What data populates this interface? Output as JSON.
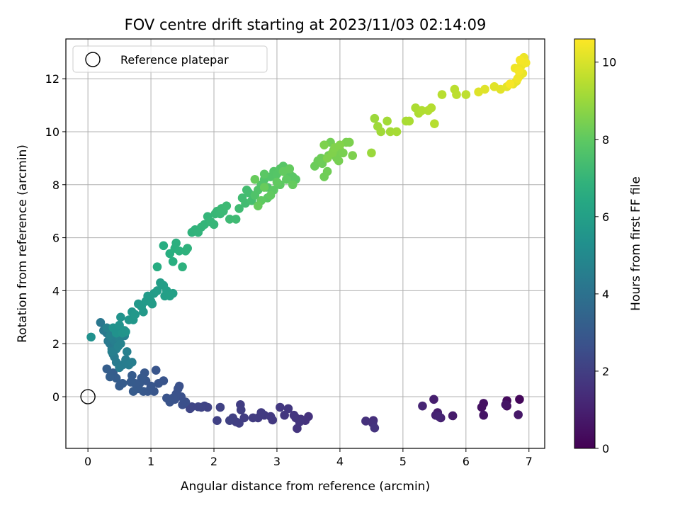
{
  "chart_data": {
    "type": "scatter",
    "title": "FOV centre drift starting at 2023/11/03 02:14:09",
    "xlabel": "Angular distance from reference (arcmin)",
    "ylabel": "Rotation from reference (arcmin)",
    "xlim": [
      -0.35,
      7.25
    ],
    "ylim": [
      -1.95,
      13.5
    ],
    "xticks": [
      0,
      1,
      2,
      3,
      4,
      5,
      6,
      7
    ],
    "yticks": [
      0,
      2,
      4,
      6,
      8,
      10,
      12
    ],
    "grid": true,
    "legend": {
      "entries": [
        "Reference platepar"
      ],
      "placement": "top-left"
    },
    "reference_point": {
      "x": 0,
      "y": 0
    },
    "colorbar": {
      "label": "Hours from first FF file",
      "colormap": "viridis",
      "range": [
        0,
        10.6
      ],
      "ticks": [
        0,
        2,
        4,
        6,
        8,
        10
      ]
    },
    "series": [
      {
        "x": [
          6.85,
          6.65,
          6.65,
          6.28,
          6.25,
          6.28,
          6.63,
          6.83,
          5.79,
          5.55,
          5.6,
          5.49,
          5.31,
          5.52,
          5.57,
          4.53,
          4.52,
          4.41,
          4.55
        ],
        "y": [
          -0.1,
          -0.15,
          -0.35,
          -0.25,
          -0.4,
          -0.7,
          -0.3,
          -0.68,
          -0.72,
          -0.6,
          -0.8,
          -0.1,
          -0.35,
          -0.7,
          -0.75,
          -0.9,
          -1.0,
          -0.92,
          -1.18
        ],
        "t": [
          0.2,
          0.3,
          0.4,
          0.5,
          0.5,
          0.6,
          0.6,
          0.7,
          0.8,
          0.9,
          1.0,
          0.9,
          1.1,
          1.0,
          1.1,
          1.4,
          1.5,
          1.5,
          1.6
        ]
      },
      {
        "x": [
          3.5,
          3.45,
          3.38,
          3.3,
          3.32,
          3.36,
          3.27,
          3.18,
          3.12,
          3.05,
          2.93,
          2.9,
          2.8,
          2.75,
          2.7,
          2.62,
          2.48,
          2.42,
          2.43,
          2.4,
          2.35,
          2.3,
          2.25,
          2.05,
          2.1,
          1.9,
          1.85,
          1.8,
          1.75,
          1.65,
          1.62
        ],
        "y": [
          -0.75,
          -0.9,
          -0.85,
          -0.8,
          -1.2,
          -0.95,
          -0.7,
          -0.45,
          -0.7,
          -0.4,
          -0.88,
          -0.75,
          -0.7,
          -0.6,
          -0.8,
          -0.8,
          -0.8,
          -0.3,
          -0.5,
          -1.0,
          -0.95,
          -0.8,
          -0.9,
          -0.9,
          -0.4,
          -0.4,
          -0.35,
          -0.4,
          -0.38,
          -0.38,
          -0.45
        ]
      },
      {
        "x": [
          1.55,
          1.5,
          1.48,
          1.45,
          1.43,
          1.4,
          1.38,
          1.35,
          1.3,
          1.25,
          1.2,
          1.12,
          1.08,
          1.05,
          1.0,
          0.95,
          0.92,
          0.9,
          0.88,
          0.85,
          0.82,
          0.8,
          0.75,
          0.72,
          0.7,
          0.68,
          0.55,
          0.5,
          0.45,
          0.4,
          0.35,
          0.3
        ],
        "y": [
          -0.2,
          -0.3,
          0.0,
          0.4,
          0.3,
          0.1,
          -0.1,
          -0.05,
          -0.2,
          -0.05,
          0.6,
          0.5,
          1.0,
          0.2,
          0.4,
          0.2,
          0.6,
          0.9,
          0.2,
          0.7,
          0.5,
          0.3,
          0.5,
          0.2,
          0.8,
          0.55,
          0.5,
          0.4,
          0.7,
          0.9,
          0.75,
          1.05
        ]
      },
      {
        "x": [
          0.2,
          0.25,
          0.3,
          0.32,
          0.35,
          0.38,
          0.4,
          0.42,
          0.45,
          0.5,
          0.55,
          0.6,
          0.65,
          0.7,
          0.45,
          0.42,
          0.4,
          0.38,
          0.62,
          0.58,
          0.35,
          0.3,
          0.55,
          0.5,
          0.48,
          0.52
        ],
        "y": [
          2.8,
          2.5,
          2.4,
          2.1,
          2.0,
          1.8,
          1.6,
          1.5,
          1.3,
          1.1,
          1.2,
          1.4,
          1.2,
          1.3,
          1.8,
          2.1,
          2.2,
          1.7,
          1.7,
          2.3,
          2.3,
          2.6,
          2.5,
          2.2,
          1.9,
          2.0
        ]
      },
      {
        "x": [
          0.05,
          0.4,
          0.45,
          0.5,
          0.52,
          0.55,
          0.58,
          0.6,
          0.65,
          0.7,
          0.72,
          0.75,
          0.8,
          0.85,
          0.88,
          0.92,
          0.95,
          1.0,
          1.02,
          1.05,
          1.1,
          1.15,
          1.2,
          1.22,
          1.25,
          1.3,
          1.35
        ],
        "y": [
          2.25,
          2.6,
          2.4,
          2.7,
          3.0,
          2.4,
          2.5,
          2.45,
          2.9,
          3.2,
          2.9,
          3.1,
          3.5,
          3.4,
          3.2,
          3.6,
          3.8,
          3.6,
          3.5,
          3.9,
          4.0,
          4.3,
          4.2,
          3.8,
          4.0,
          3.8,
          3.9
        ]
      },
      {
        "x": [
          1.1,
          1.2,
          1.3,
          1.35,
          1.38,
          1.4,
          1.45,
          1.5,
          1.55,
          1.58,
          1.65,
          1.7,
          1.75,
          1.8,
          1.85,
          1.9,
          1.95,
          2.0,
          2.02,
          2.05,
          2.1,
          2.12,
          2.15,
          2.2,
          2.25,
          2.35,
          2.4,
          2.45,
          2.5,
          2.52,
          2.55,
          2.6
        ],
        "y": [
          4.9,
          5.7,
          5.4,
          5.1,
          5.6,
          5.8,
          5.5,
          4.9,
          5.5,
          5.6,
          6.2,
          6.3,
          6.2,
          6.4,
          6.5,
          6.8,
          6.6,
          6.5,
          6.9,
          7.0,
          6.9,
          7.1,
          7.0,
          7.2,
          6.7,
          6.7,
          7.1,
          7.5,
          7.3,
          7.8,
          7.7,
          7.4
        ]
      },
      {
        "x": [
          2.65,
          2.7,
          2.75,
          2.8,
          2.85,
          2.9,
          2.95,
          3.0,
          3.05,
          3.1,
          3.15,
          3.2,
          3.25,
          3.3,
          2.8,
          2.85,
          2.95,
          3.05,
          3.15,
          2.75,
          2.9,
          3.0,
          3.1,
          3.2,
          3.25,
          2.7,
          2.65,
          2.8
        ],
        "y": [
          7.6,
          7.8,
          8.0,
          8.2,
          7.9,
          8.3,
          8.5,
          8.4,
          8.6,
          8.7,
          8.5,
          8.4,
          8.3,
          8.2,
          8.4,
          7.5,
          7.8,
          8.0,
          8.2,
          7.4,
          7.6,
          8.1,
          8.5,
          8.6,
          8.0,
          7.2,
          8.2,
          7.9
        ]
      },
      {
        "x": [
          3.6,
          3.65,
          3.7,
          3.72,
          3.75,
          3.8,
          3.82,
          3.85,
          3.9,
          3.92,
          3.95,
          3.98,
          4.0,
          4.05,
          4.1,
          4.15,
          4.2,
          3.75,
          3.8,
          3.88,
          3.92,
          4.0
        ],
        "y": [
          8.7,
          8.9,
          9.0,
          8.8,
          8.3,
          8.5,
          9.1,
          9.6,
          9.3,
          9.1,
          9.0,
          8.9,
          9.3,
          9.2,
          9.6,
          9.6,
          9.1,
          9.5,
          9.0,
          9.2,
          9.4,
          9.5
        ]
      },
      {
        "x": [
          4.5,
          4.55,
          4.6,
          4.65,
          4.75,
          4.8,
          4.9,
          5.05,
          5.1,
          5.2,
          5.25,
          5.3,
          5.4,
          5.45,
          5.5,
          5.62,
          5.82,
          5.85,
          6.0
        ],
        "y": [
          9.2,
          10.5,
          10.2,
          10.0,
          10.4,
          10.0,
          10.0,
          10.4,
          10.4,
          10.9,
          10.7,
          10.8,
          10.8,
          10.9,
          10.3,
          11.4,
          11.6,
          11.4,
          11.4
        ]
      },
      {
        "x": [
          6.2,
          6.3,
          6.45,
          6.55,
          6.65,
          6.75,
          6.8,
          6.85,
          6.9,
          6.92,
          6.88,
          6.78,
          6.82,
          6.95,
          6.84,
          6.86,
          6.7
        ],
        "y": [
          11.5,
          11.6,
          11.7,
          11.6,
          11.7,
          11.8,
          11.9,
          12.1,
          12.2,
          12.8,
          12.5,
          12.4,
          12.0,
          12.6,
          12.3,
          12.7,
          11.8
        ]
      }
    ]
  }
}
